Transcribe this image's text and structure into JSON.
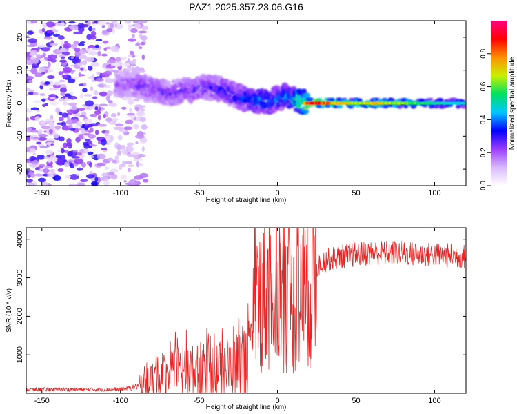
{
  "title": "PAZ1.2025.357.23.06.G16",
  "chart_data": [
    {
      "type": "heatmap",
      "panel": "top",
      "xlabel": "Height of straight line (km)",
      "ylabel": "Frequency (Hz)",
      "xlim": [
        -160,
        120
      ],
      "ylim": [
        -25,
        25
      ],
      "xticks": [
        -150,
        -100,
        -50,
        0,
        50,
        100
      ],
      "yticks": [
        -20,
        -10,
        0,
        10,
        20
      ],
      "colorbar": {
        "label": "Normalized spectral amplitude",
        "range": [
          0,
          1
        ],
        "ticks": [
          "0.0",
          "0.2",
          "0.4",
          "0.6",
          "0.8"
        ],
        "colormap": [
          "#ffffff",
          "#d8b8ff",
          "#9a3cff",
          "#0000ff",
          "#00c8ff",
          "#00e060",
          "#c8f000",
          "#ff9000",
          "#ff0000",
          "#ff0080"
        ]
      },
      "description_points": {
        "noise_region_x": [
          -160,
          -85
        ],
        "signal_center_freq": [
          [
            -100,
            6
          ],
          [
            -85,
            5
          ],
          [
            -70,
            3
          ],
          [
            -55,
            4
          ],
          [
            -45,
            5
          ],
          [
            -35,
            4
          ],
          [
            -25,
            2
          ],
          [
            -15,
            1
          ],
          [
            -5,
            0.5
          ],
          [
            5,
            2
          ],
          [
            15,
            0.5
          ],
          [
            20,
            0
          ],
          [
            40,
            0
          ],
          [
            60,
            0
          ],
          [
            80,
            0
          ],
          [
            100,
            0
          ],
          [
            120,
            0
          ]
        ],
        "peak_amplitude": [
          [
            -100,
            0.25
          ],
          [
            -80,
            0.3
          ],
          [
            -60,
            0.3
          ],
          [
            -40,
            0.35
          ],
          [
            -20,
            0.4
          ],
          [
            -10,
            0.5
          ],
          [
            0,
            0.45
          ],
          [
            10,
            0.5
          ],
          [
            20,
            0.95
          ],
          [
            30,
            0.9
          ],
          [
            40,
            0.75
          ],
          [
            50,
            0.7
          ],
          [
            60,
            0.75
          ],
          [
            80,
            0.65
          ],
          [
            100,
            0.55
          ],
          [
            120,
            0.5
          ]
        ]
      }
    },
    {
      "type": "line",
      "panel": "bottom",
      "xlabel": "Height of straight line (km)",
      "ylabel": "SNR (10 * v/v)",
      "xlim": [
        -160,
        120
      ],
      "ylim": [
        0,
        4300
      ],
      "xticks": [
        -150,
        -100,
        -50,
        0,
        50,
        100
      ],
      "yticks": [
        1000,
        2000,
        3000,
        4000
      ],
      "series": [
        {
          "name": "SNR",
          "color": "#ee2222",
          "envelope": [
            [
              -160,
              100
            ],
            [
              -100,
              100
            ],
            [
              -92,
              150
            ],
            [
              -85,
              250
            ],
            [
              -80,
              350
            ],
            [
              -70,
              500
            ],
            [
              -60,
              550
            ],
            [
              -50,
              550
            ],
            [
              -40,
              600
            ],
            [
              -30,
              650
            ],
            [
              -20,
              800
            ],
            [
              -17,
              1000
            ],
            [
              -15,
              1800
            ],
            [
              -13,
              2300
            ],
            [
              -10,
              2600
            ],
            [
              -5,
              2500
            ],
            [
              0,
              2800
            ],
            [
              5,
              2500
            ],
            [
              10,
              2200
            ],
            [
              15,
              2300
            ],
            [
              20,
              2800
            ],
            [
              25,
              3300
            ],
            [
              30,
              3450
            ],
            [
              40,
              3550
            ],
            [
              50,
              3600
            ],
            [
              60,
              3650
            ],
            [
              70,
              3650
            ],
            [
              80,
              3650
            ],
            [
              90,
              3600
            ],
            [
              100,
              3600
            ],
            [
              110,
              3580
            ],
            [
              120,
              3550
            ]
          ],
          "spikes": [
            [
              -87,
              450
            ],
            [
              -65,
              1600
            ],
            [
              -58,
              1650
            ],
            [
              -45,
              1700
            ],
            [
              -35,
              1350
            ],
            [
              -25,
              1200
            ],
            [
              -14,
              4300
            ],
            [
              -12,
              3300
            ],
            [
              -5,
              3800
            ],
            [
              2,
              3900
            ],
            [
              8,
              2700
            ],
            [
              13,
              3800
            ],
            [
              16,
              4100
            ],
            [
              18,
              1800
            ],
            [
              75,
              3900
            ],
            [
              88,
              3850
            ]
          ]
        }
      ]
    }
  ]
}
